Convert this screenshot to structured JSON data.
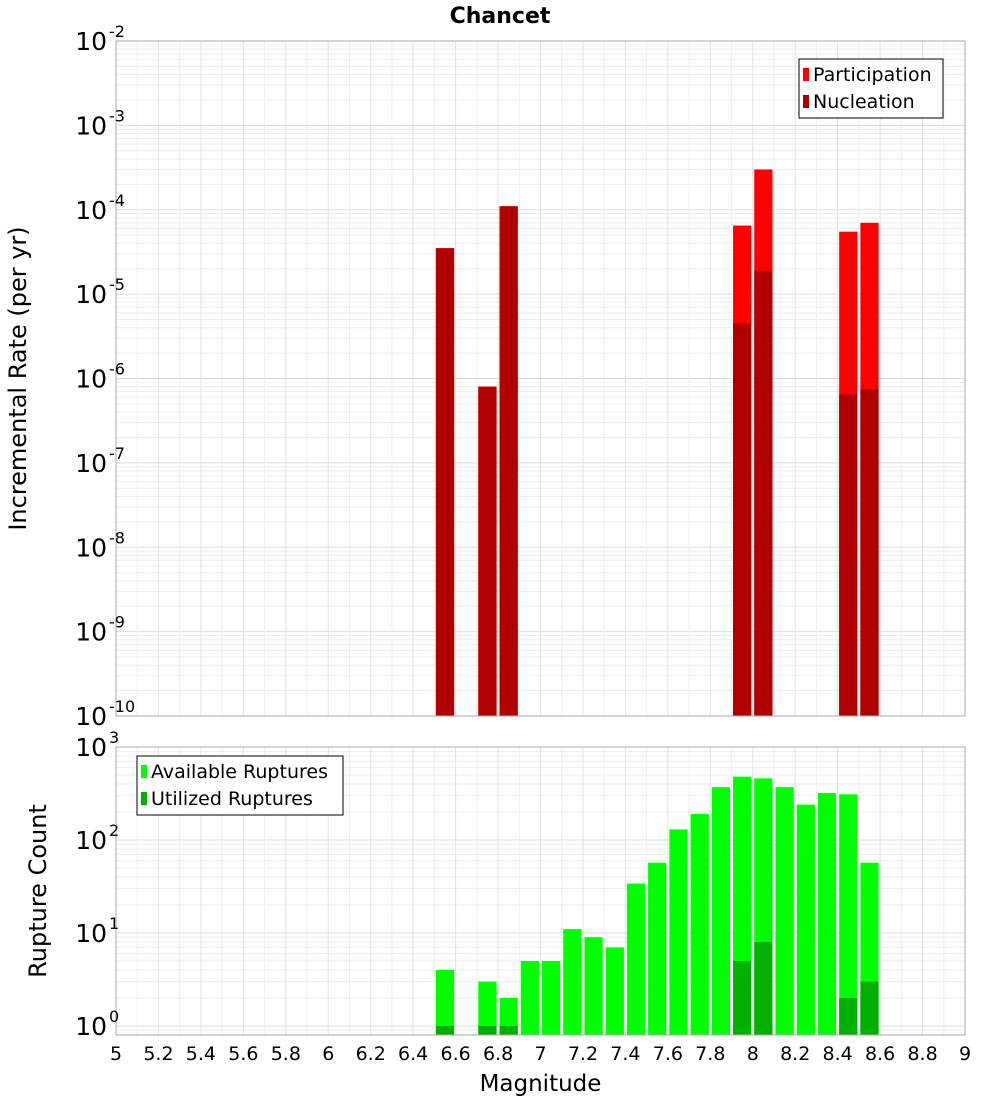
{
  "chart_data": [
    {
      "type": "bar",
      "title": "Chancet",
      "xlabel": "",
      "ylabel": "Incremental Rate (per yr)",
      "x_range": [
        5,
        9
      ],
      "y_scale": "log",
      "ylim": [
        1e-10,
        0.01
      ],
      "y_tick_exponents": [
        "-10",
        "-9",
        "-8",
        "-7",
        "-6",
        "-5",
        "-4",
        "-3",
        "-2"
      ],
      "grid": true,
      "legend_position": "top-right",
      "series": [
        {
          "name": "Participation",
          "color": "#ff0000",
          "x": [
            6.55,
            6.75,
            6.85,
            7.95,
            8.05,
            8.45,
            8.55
          ],
          "values": [
            3.5e-05,
            8e-07,
            0.00011,
            6.5e-05,
            0.0003,
            5.5e-05,
            7e-05
          ]
        },
        {
          "name": "Nucleation",
          "color": "#b00000",
          "x": [
            6.55,
            6.75,
            6.85,
            7.95,
            8.05,
            8.45,
            8.55
          ],
          "values": [
            3.5e-05,
            8e-07,
            0.00011,
            4.5e-06,
            1.9e-05,
            6.5e-07,
            7.5e-07
          ]
        }
      ]
    },
    {
      "type": "bar",
      "title": "",
      "xlabel": "Magnitude",
      "ylabel": "Rupture Count",
      "x_range": [
        5,
        9
      ],
      "x_ticks": [
        "5",
        "5.2",
        "5.4",
        "5.6",
        "5.8",
        "6",
        "6.2",
        "6.4",
        "6.6",
        "6.8",
        "7",
        "7.2",
        "7.4",
        "7.6",
        "7.8",
        "8",
        "8.2",
        "8.4",
        "8.6",
        "8.8",
        "9"
      ],
      "y_scale": "log",
      "ylim": [
        0.8,
        1000
      ],
      "y_tick_exponents": [
        "0",
        "1",
        "2",
        "3"
      ],
      "grid": true,
      "legend_position": "top-left",
      "series": [
        {
          "name": "Available Ruptures",
          "color": "#00ff00",
          "x": [
            6.55,
            6.75,
            6.85,
            6.95,
            7.05,
            7.15,
            7.25,
            7.35,
            7.45,
            7.55,
            7.65,
            7.75,
            7.85,
            7.95,
            8.05,
            8.15,
            8.25,
            8.35,
            8.45,
            8.55
          ],
          "values": [
            4,
            3,
            2,
            5,
            5,
            11,
            9,
            7,
            34,
            57,
            130,
            190,
            370,
            480,
            460,
            370,
            240,
            320,
            310,
            57
          ]
        },
        {
          "name": "Utilized Ruptures",
          "color": "#00b000",
          "x": [
            6.55,
            6.75,
            6.85,
            7.95,
            8.05,
            8.45,
            8.55
          ],
          "values": [
            1,
            1,
            1,
            5,
            8,
            2,
            3
          ]
        }
      ]
    }
  ]
}
